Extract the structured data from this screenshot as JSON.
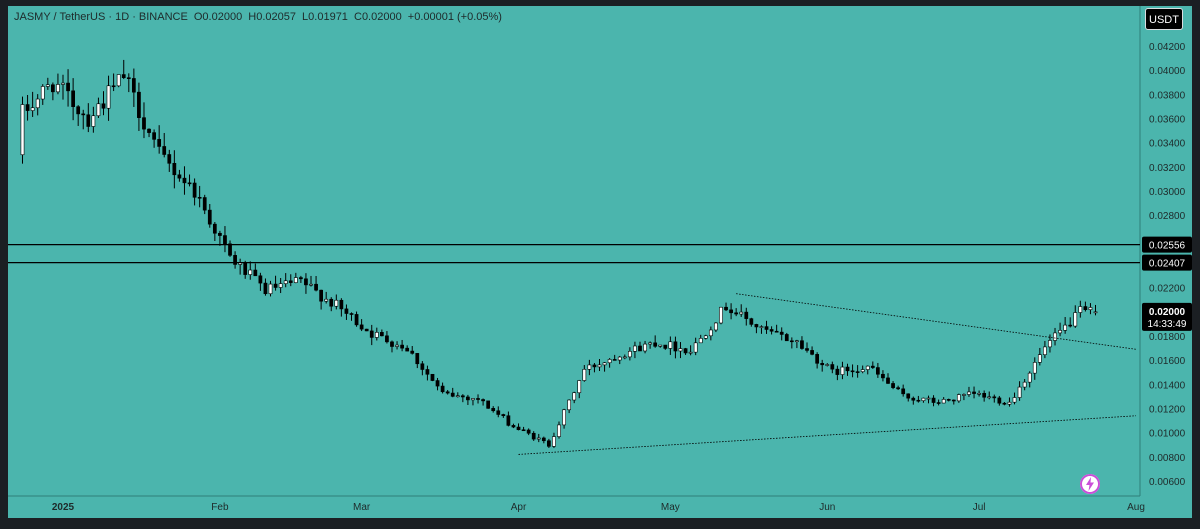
{
  "legend": {
    "symbol": "JASMY / TetherUS · 1D · BINANCE",
    "open": "O0.02000",
    "high": "H0.02057",
    "low": "L0.01971",
    "close": "C0.02000",
    "change": "+0.00001 (+0.05%)"
  },
  "currency_button": "USDT",
  "countdown": "14:33:49",
  "icons": {
    "bolt": "lightning-bolt-icon"
  },
  "colors": {
    "background": "#4bb5ad",
    "up_candle": "#ffffff",
    "down_candle": "#000000",
    "wick": "#000000"
  },
  "chart_data": {
    "type": "candlestick",
    "symbol": "JASMY/USDT",
    "exchange": "BINANCE",
    "interval": "1D",
    "x_tick_labels": [
      "2025",
      "Feb",
      "Mar",
      "Apr",
      "May",
      "Jun",
      "Jul",
      "Aug"
    ],
    "y_tick_labels": [
      "0.04200",
      "0.04000",
      "0.03800",
      "0.03600",
      "0.03400",
      "0.03200",
      "0.03000",
      "0.02800",
      "0.02200",
      "0.01800",
      "0.01600",
      "0.01400",
      "0.01200",
      "0.01000",
      "0.00800",
      "0.00600"
    ],
    "ylim": [
      0.0052,
      0.044
    ],
    "last_price": "0.02000",
    "horizontal_levels": [
      {
        "price": 0.02556,
        "label": "0.02556"
      },
      {
        "price": 0.02407,
        "label": "0.02407"
      }
    ],
    "trendlines": [
      {
        "style": "dotted",
        "from": {
          "date": "2025-05-14",
          "price": 0.0215
        },
        "to": {
          "date": "2025-08-01",
          "price": 0.0169
        }
      },
      {
        "style": "dotted",
        "from": {
          "date": "2025-04-01",
          "price": 0.0082
        },
        "to": {
          "date": "2025-08-01",
          "price": 0.0114
        }
      }
    ],
    "weekly_closes": [
      {
        "date": "2024-12-23",
        "close": 0.036
      },
      {
        "date": "2024-12-30",
        "close": 0.039
      },
      {
        "date": "2025-01-06",
        "close": 0.036
      },
      {
        "date": "2025-01-13",
        "close": 0.0395
      },
      {
        "date": "2025-01-20",
        "close": 0.033
      },
      {
        "date": "2025-01-27",
        "close": 0.03
      },
      {
        "date": "2025-02-03",
        "close": 0.0245
      },
      {
        "date": "2025-02-10",
        "close": 0.0218
      },
      {
        "date": "2025-02-17",
        "close": 0.0225
      },
      {
        "date": "2025-02-24",
        "close": 0.0205
      },
      {
        "date": "2025-03-03",
        "close": 0.0182
      },
      {
        "date": "2025-03-10",
        "close": 0.017
      },
      {
        "date": "2025-03-17",
        "close": 0.0132
      },
      {
        "date": "2025-03-24",
        "close": 0.0128
      },
      {
        "date": "2025-03-31",
        "close": 0.0105
      },
      {
        "date": "2025-04-07",
        "close": 0.009
      },
      {
        "date": "2025-04-14",
        "close": 0.0152
      },
      {
        "date": "2025-04-21",
        "close": 0.0165
      },
      {
        "date": "2025-04-28",
        "close": 0.0175
      },
      {
        "date": "2025-05-05",
        "close": 0.0168
      },
      {
        "date": "2025-05-12",
        "close": 0.0205
      },
      {
        "date": "2025-05-19",
        "close": 0.0185
      },
      {
        "date": "2025-05-26",
        "close": 0.0175
      },
      {
        "date": "2025-06-02",
        "close": 0.015
      },
      {
        "date": "2025-06-09",
        "close": 0.0155
      },
      {
        "date": "2025-06-16",
        "close": 0.013
      },
      {
        "date": "2025-06-23",
        "close": 0.0125
      },
      {
        "date": "2025-06-30",
        "close": 0.0132
      },
      {
        "date": "2025-07-07",
        "close": 0.0125
      },
      {
        "date": "2025-07-14",
        "close": 0.017
      },
      {
        "date": "2025-07-21",
        "close": 0.02
      }
    ]
  }
}
